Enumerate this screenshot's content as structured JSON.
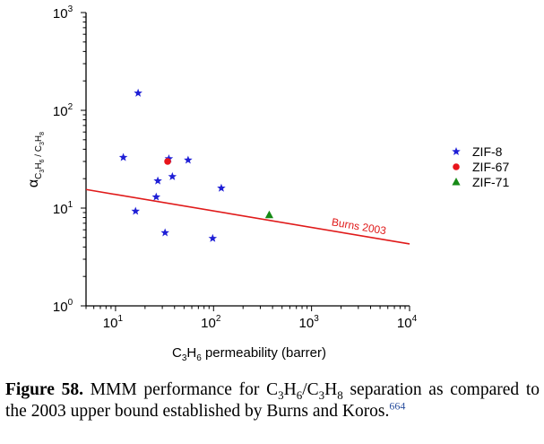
{
  "chart_data": {
    "type": "scatter",
    "xlabel": {
      "base": "C",
      "sub1": "3",
      "mid": "H",
      "sub2": "6",
      "rest": " permeability (barrer)"
    },
    "ylabel": {
      "symbol": "α",
      "sub": "C3H6 / C3H8"
    },
    "xscale": "log",
    "yscale": "log",
    "xlim": [
      5,
      10000
    ],
    "ylim": [
      1,
      1000
    ],
    "x_ticks": [
      {
        "value": 10,
        "label": "10",
        "exp": "1"
      },
      {
        "value": 100,
        "label": "10",
        "exp": "2"
      },
      {
        "value": 1000,
        "label": "10",
        "exp": "3"
      },
      {
        "value": 10000,
        "label": "10",
        "exp": "4"
      }
    ],
    "y_ticks": [
      {
        "value": 1,
        "label": "10",
        "exp": "0"
      },
      {
        "value": 10,
        "label": "10",
        "exp": "1"
      },
      {
        "value": 100,
        "label": "10",
        "exp": "2"
      },
      {
        "value": 1000,
        "label": "10",
        "exp": "3"
      }
    ],
    "legend_position": "right",
    "series": [
      {
        "name": "ZIF-8",
        "marker": "star",
        "color": "#1f1fd6",
        "points": [
          {
            "x": 17,
            "y": 150
          },
          {
            "x": 12,
            "y": 33
          },
          {
            "x": 35,
            "y": 32
          },
          {
            "x": 55,
            "y": 31
          },
          {
            "x": 38,
            "y": 21
          },
          {
            "x": 27,
            "y": 19
          },
          {
            "x": 120,
            "y": 16
          },
          {
            "x": 26,
            "y": 13
          },
          {
            "x": 16,
            "y": 9.3
          },
          {
            "x": 32,
            "y": 5.6
          },
          {
            "x": 98,
            "y": 4.9
          }
        ]
      },
      {
        "name": "ZIF-67",
        "marker": "circle",
        "color": "#e8141b",
        "points": [
          {
            "x": 34,
            "y": 30
          }
        ]
      },
      {
        "name": "ZIF-71",
        "marker": "triangle",
        "color": "#168a16",
        "points": [
          {
            "x": 370,
            "y": 8.5
          }
        ]
      }
    ],
    "upper_bound": {
      "label": "Burns 2003",
      "color": "#e01a1a",
      "x_start": 5,
      "y_start": 15.5,
      "x_end": 10000,
      "y_end": 4.3
    }
  },
  "caption": {
    "figure_label": "Figure 58.",
    "text_before": " MMM performance for C",
    "sub_a": "3",
    "h_a": "H",
    "sub_b": "6",
    "slash_c": "/C",
    "sub_c": "3",
    "h_b": "H",
    "sub_d": "8",
    "text_after": " separation as compared to the 2003 upper bound established by Burns and Koros.",
    "ref": "664"
  }
}
